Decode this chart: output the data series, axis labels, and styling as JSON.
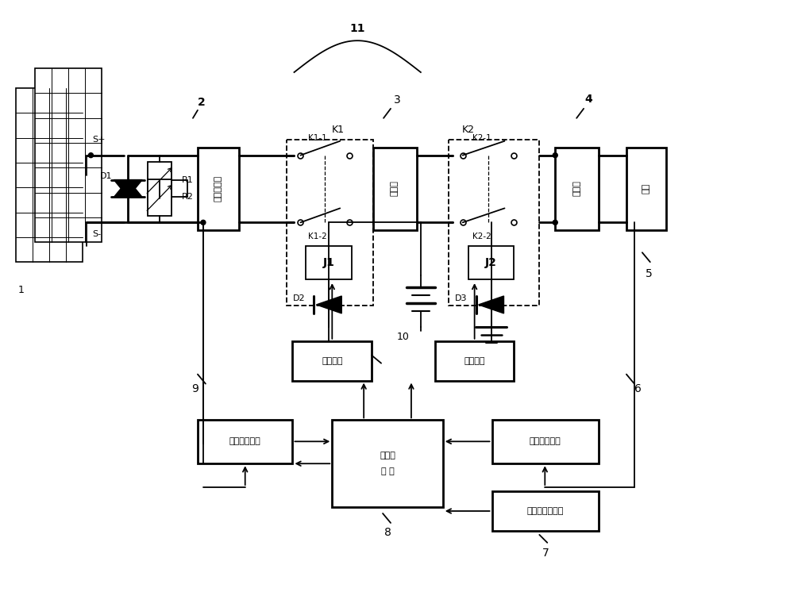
{
  "background_color": "#ffffff",
  "fig_width": 10.0,
  "fig_height": 7.46,
  "dpi": 100,
  "labels": {
    "S_plus": "S+",
    "S_minus": "S-",
    "D1": "D1",
    "R1": "R1",
    "R2": "R2",
    "label1": "1",
    "label2": "2",
    "label3": "3",
    "label4": "4",
    "label5": "5",
    "label6": "6",
    "label7": "7",
    "label8": "8",
    "label9": "9",
    "label10": "10",
    "label11": "11",
    "K1": "K1",
    "K1_1": "K1-1",
    "K1_2": "K1-2",
    "K2": "K2",
    "K2_1": "K2-1",
    "K2_2": "K2-2",
    "J1": "J1",
    "J2": "J2",
    "D2": "D2",
    "D3": "D3",
    "box2": "充电控制器",
    "box3": "电池组",
    "box4": "逆变器",
    "box5": "负载",
    "box6": "输出检测电路",
    "box7": "键盘和显示电路",
    "box8_line1": "中央处",
    "box8_line2": "理 器",
    "box9": "输入检测电路",
    "box_drive": "驱动电路"
  }
}
